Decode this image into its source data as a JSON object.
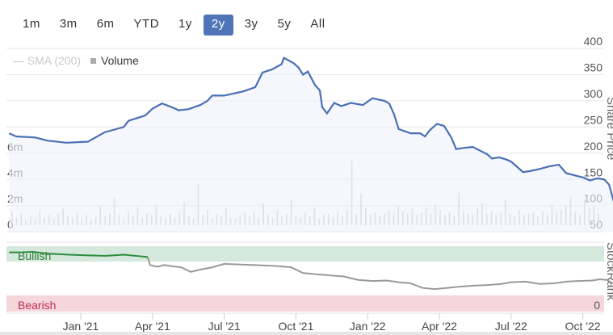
{
  "range_selector": {
    "buttons": [
      "1m",
      "3m",
      "6m",
      "YTD",
      "1y",
      "2y",
      "3y",
      "5y",
      "All"
    ],
    "active": "2y"
  },
  "legend": {
    "sma": "SMA (200)",
    "volume": "Volume"
  },
  "colors": {
    "price": "#4a6fb5",
    "bullish_band": "#d5e8dc",
    "bearish_band": "#f5d6dc",
    "rank_bull": "#2e8b3e",
    "rank": "#999999",
    "volume": "#c8c8c8"
  },
  "chart_data": [
    {
      "type": "area",
      "title": "Share Price",
      "ylabel": "Share Price",
      "ylim": [
        50,
        400
      ],
      "yticks": [
        "50",
        "100",
        "150",
        "200",
        "250",
        "300",
        "350",
        "400"
      ],
      "x_unit": "months since Oct 2020",
      "xticks": [
        {
          "label": "Jan '21",
          "x": 3
        },
        {
          "label": "Apr '21",
          "x": 6
        },
        {
          "label": "Jul '21",
          "x": 9
        },
        {
          "label": "Oct '21",
          "x": 12
        },
        {
          "label": "Jan '22",
          "x": 15
        },
        {
          "label": "Apr '22",
          "x": 18
        },
        {
          "label": "Jul '22",
          "x": 21
        },
        {
          "label": "Oct '22",
          "x": 24
        }
      ],
      "series": [
        {
          "name": "Price",
          "points": [
            [
              0,
              238
            ],
            [
              0.3,
              232
            ],
            [
              1.1,
              230
            ],
            [
              1.6,
              224
            ],
            [
              2.4,
              220
            ],
            [
              3.3,
              222
            ],
            [
              4.0,
              240
            ],
            [
              4.8,
              250
            ],
            [
              5.0,
              262
            ],
            [
              5.7,
              272
            ],
            [
              6.0,
              285
            ],
            [
              6.4,
              295
            ],
            [
              6.8,
              288
            ],
            [
              7.1,
              282
            ],
            [
              7.5,
              284
            ],
            [
              8.0,
              292
            ],
            [
              8.3,
              300
            ],
            [
              8.5,
              310
            ],
            [
              9.0,
              310
            ],
            [
              9.8,
              318
            ],
            [
              10.3,
              326
            ],
            [
              10.6,
              354
            ],
            [
              11.0,
              360
            ],
            [
              11.4,
              370
            ],
            [
              11.5,
              382
            ],
            [
              11.9,
              372
            ],
            [
              12.1,
              364
            ],
            [
              12.3,
              350
            ],
            [
              12.5,
              356
            ],
            [
              12.8,
              330
            ],
            [
              13.0,
              320
            ],
            [
              13.1,
              288
            ],
            [
              13.3,
              276
            ],
            [
              13.6,
              296
            ],
            [
              13.9,
              290
            ],
            [
              14.3,
              296
            ],
            [
              14.8,
              292
            ],
            [
              15.2,
              305
            ],
            [
              15.7,
              300
            ],
            [
              15.9,
              295
            ],
            [
              16.1,
              275
            ],
            [
              16.3,
              246
            ],
            [
              16.8,
              238
            ],
            [
              17.2,
              238
            ],
            [
              17.4,
              232
            ],
            [
              17.6,
              244
            ],
            [
              17.9,
              256
            ],
            [
              18.2,
              252
            ],
            [
              18.5,
              230
            ],
            [
              18.7,
              208
            ],
            [
              19.0,
              210
            ],
            [
              19.4,
              212
            ],
            [
              19.7,
              205
            ],
            [
              20.0,
              198
            ],
            [
              20.2,
              190
            ],
            [
              20.5,
              192
            ],
            [
              20.8,
              188
            ],
            [
              21.0,
              184
            ],
            [
              21.2,
              176
            ],
            [
              21.5,
              164
            ],
            [
              21.8,
              166
            ],
            [
              22.2,
              170
            ],
            [
              22.6,
              175
            ],
            [
              23.0,
              178
            ],
            [
              23.3,
              162
            ],
            [
              23.8,
              156
            ],
            [
              24.0,
              154
            ],
            [
              24.3,
              148
            ],
            [
              24.6,
              152
            ],
            [
              24.9,
              150
            ],
            [
              25.1,
              140
            ],
            [
              25.3,
              107
            ],
            [
              25.6,
              118
            ],
            [
              25.9,
              123
            ],
            [
              26.0,
              118
            ]
          ]
        }
      ]
    },
    {
      "type": "bar",
      "title": "Volume",
      "yticks": [
        "0",
        "2m",
        "4m",
        "6m"
      ],
      "ylim": [
        0,
        7
      ],
      "values_m": [
        1.1,
        0.6,
        0.9,
        0.4,
        0.7,
        0.5,
        1.2,
        0.6,
        0.8,
        0.5,
        0.9,
        1.3,
        0.7,
        0.6,
        1.0,
        0.5,
        0.8,
        0.4,
        0.6,
        1.5,
        0.7,
        0.9,
        2.1,
        0.8,
        0.5,
        1.1,
        0.7,
        1.4,
        0.6,
        0.9,
        0.8,
        1.6,
        0.7,
        0.5,
        0.9,
        0.6,
        1.0,
        1.8,
        0.7,
        0.5,
        3.2,
        0.8,
        1.2,
        0.6,
        0.9,
        0.7,
        1.3,
        0.6,
        0.5,
        0.8,
        1.0,
        0.7,
        1.1,
        0.6,
        1.7,
        0.8,
        0.6,
        1.2,
        0.7,
        0.9,
        2.0,
        0.8,
        0.6,
        1.0,
        0.7,
        1.4,
        0.5,
        0.8,
        0.9,
        0.6,
        1.1,
        0.7,
        1.2,
        5.0,
        0.9,
        2.4,
        1.3,
        0.8,
        1.0,
        0.7,
        0.9,
        1.2,
        0.8,
        1.5,
        1.1,
        0.9,
        1.3,
        0.8,
        1.0,
        1.4,
        0.9,
        1.6,
        1.2,
        0.8,
        1.0,
        0.7,
        2.5,
        1.1,
        0.9,
        0.8,
        1.3,
        1.7,
        0.9,
        1.1,
        0.8,
        1.0,
        2.0,
        0.9,
        0.7,
        1.2,
        0.8,
        0.9,
        1.0,
        0.7,
        1.1,
        0.8,
        1.6,
        1.0,
        1.2,
        1.5,
        2.2,
        1.0,
        0.8,
        2.0,
        1.3,
        1.5,
        0.9
      ]
    },
    {
      "type": "line",
      "title": "StockRank",
      "ylabel": "StockRank",
      "ylim": [
        0,
        100
      ],
      "bands": [
        {
          "label": "Bullish",
          "from": 80,
          "to": 100
        },
        {
          "label": "Bearish",
          "from": 0,
          "to": 20
        }
      ],
      "yticks": [
        "0"
      ],
      "points": [
        [
          0,
          92
        ],
        [
          0.5,
          92
        ],
        [
          1.0,
          93
        ],
        [
          1.6,
          90
        ],
        [
          2.5,
          88
        ],
        [
          3.2,
          87
        ],
        [
          4.0,
          86
        ],
        [
          4.8,
          88
        ],
        [
          5.3,
          86
        ],
        [
          5.8,
          84
        ],
        [
          5.9,
          70
        ],
        [
          6.2,
          67
        ],
        [
          6.5,
          70
        ],
        [
          6.8,
          68
        ],
        [
          7.2,
          66
        ],
        [
          7.6,
          58
        ],
        [
          8.0,
          62
        ],
        [
          8.5,
          66
        ],
        [
          9.0,
          72
        ],
        [
          9.6,
          71
        ],
        [
          10.2,
          70
        ],
        [
          10.8,
          69
        ],
        [
          11.3,
          68
        ],
        [
          11.8,
          66
        ],
        [
          12.3,
          56
        ],
        [
          12.8,
          54
        ],
        [
          13.4,
          52
        ],
        [
          14.0,
          50
        ],
        [
          14.6,
          44
        ],
        [
          15.2,
          42
        ],
        [
          15.8,
          43
        ],
        [
          16.3,
          40
        ],
        [
          16.8,
          38
        ],
        [
          17.3,
          30
        ],
        [
          17.8,
          28
        ],
        [
          18.3,
          30
        ],
        [
          18.8,
          32
        ],
        [
          19.4,
          34
        ],
        [
          20.0,
          35
        ],
        [
          20.6,
          37
        ],
        [
          21.0,
          40
        ],
        [
          21.6,
          41
        ],
        [
          22.2,
          37
        ],
        [
          22.8,
          38
        ],
        [
          23.3,
          41
        ],
        [
          23.8,
          42
        ],
        [
          24.4,
          43
        ],
        [
          24.7,
          45
        ],
        [
          25.0,
          44
        ],
        [
          25.3,
          37
        ],
        [
          25.8,
          35
        ],
        [
          26.0,
          34
        ]
      ]
    }
  ]
}
